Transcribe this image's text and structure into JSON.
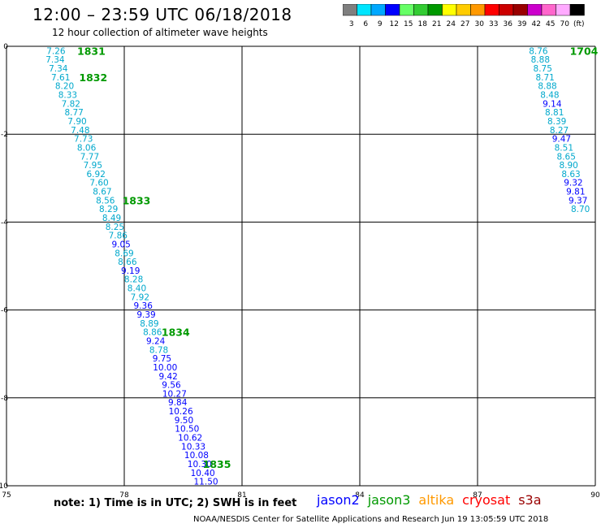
{
  "header": {
    "title": "12:00 – 23:59 UTC 06/18/2018",
    "subtitle": "12 hour collection of altimeter wave heights"
  },
  "colorbar": {
    "labels": [
      "3",
      "6",
      "9",
      "12",
      "15",
      "18",
      "21",
      "24",
      "27",
      "30",
      "33",
      "36",
      "39",
      "42",
      "45",
      "70",
      "(ft)"
    ],
    "colors": [
      "#7f7f7f",
      "#00e5ff",
      "#00a8ff",
      "#0000ff",
      "#66ff66",
      "#33cc33",
      "#009900",
      "#ffff00",
      "#ffcc00",
      "#ff9900",
      "#ff0000",
      "#cc0000",
      "#990000",
      "#cc00cc",
      "#ff66cc",
      "#ffaaff",
      "#000000"
    ]
  },
  "footer": {
    "note": "note:  1) Time is in UTC;  2) SWH is in feet",
    "credit": "NOAA/NESDIS Center for Satellite Applications and Research     Jun 19 13:05:59 UTC 2018"
  },
  "legend": [
    {
      "name": "jason2",
      "color": "#0000ff"
    },
    {
      "name": "jason3",
      "color": "#009900"
    },
    {
      "name": "altika",
      "color": "#ff9900"
    },
    {
      "name": "cryosat",
      "color": "#ff0000"
    },
    {
      "name": "s3a",
      "color": "#990000"
    }
  ],
  "chart_data": {
    "type": "scatter",
    "xlim": [
      75,
      90
    ],
    "ylim": [
      -10,
      0
    ],
    "x_ticks": [
      "75",
      "78",
      "81",
      "84",
      "87",
      "90"
    ],
    "y_ticks": [
      "0",
      "-2",
      "-4",
      "-6",
      "-8",
      "-10"
    ],
    "grid": true,
    "color_light": "#00a8cc",
    "color_dark": "#0000ff",
    "time_color": "#009900",
    "series": [
      {
        "points": [
          {
            "x": 76.26,
            "y": -0.1,
            "v": "7.26"
          },
          {
            "x": 76.24,
            "y": -0.3,
            "v": "7.34"
          },
          {
            "x": 76.32,
            "y": -0.5,
            "v": "7.34"
          },
          {
            "x": 76.38,
            "y": -0.7,
            "v": "7.61"
          },
          {
            "x": 76.48,
            "y": -0.9,
            "v": "8.20"
          },
          {
            "x": 76.56,
            "y": -1.1,
            "v": "8.33"
          },
          {
            "x": 76.64,
            "y": -1.3,
            "v": "7.82"
          },
          {
            "x": 76.72,
            "y": -1.5,
            "v": "8.77"
          },
          {
            "x": 76.8,
            "y": -1.7,
            "v": "7.90"
          },
          {
            "x": 76.88,
            "y": -1.9,
            "v": "7.48"
          },
          {
            "x": 76.96,
            "y": -2.1,
            "v": "7.73"
          },
          {
            "x": 77.04,
            "y": -2.3,
            "v": "8.06"
          },
          {
            "x": 77.12,
            "y": -2.5,
            "v": "7.77"
          },
          {
            "x": 77.2,
            "y": -2.7,
            "v": "7.95"
          },
          {
            "x": 77.28,
            "y": -2.9,
            "v": "6.92"
          },
          {
            "x": 77.36,
            "y": -3.1,
            "v": "7.60"
          },
          {
            "x": 77.44,
            "y": -3.3,
            "v": "8.67"
          },
          {
            "x": 77.52,
            "y": -3.5,
            "v": "8.56"
          },
          {
            "x": 77.6,
            "y": -3.7,
            "v": "8.29"
          },
          {
            "x": 77.68,
            "y": -3.9,
            "v": "8.49"
          },
          {
            "x": 77.76,
            "y": -4.1,
            "v": "8.25"
          },
          {
            "x": 77.84,
            "y": -4.3,
            "v": "7.86"
          },
          {
            "x": 77.92,
            "y": -4.5,
            "v": "9.05"
          },
          {
            "x": 78.0,
            "y": -4.7,
            "v": "8.69"
          },
          {
            "x": 78.08,
            "y": -4.9,
            "v": "8.66"
          },
          {
            "x": 78.16,
            "y": -5.1,
            "v": "9.19"
          },
          {
            "x": 78.24,
            "y": -5.3,
            "v": "8.28"
          },
          {
            "x": 78.32,
            "y": -5.5,
            "v": "8.40"
          },
          {
            "x": 78.4,
            "y": -5.7,
            "v": "7.92"
          },
          {
            "x": 78.48,
            "y": -5.9,
            "v": "9.36"
          },
          {
            "x": 78.56,
            "y": -6.1,
            "v": "9.39"
          },
          {
            "x": 78.64,
            "y": -6.3,
            "v": "8.89"
          },
          {
            "x": 78.72,
            "y": -6.5,
            "v": "8.86"
          },
          {
            "x": 78.8,
            "y": -6.7,
            "v": "9.24"
          },
          {
            "x": 78.88,
            "y": -6.9,
            "v": "8.78"
          },
          {
            "x": 78.96,
            "y": -7.1,
            "v": "9.75"
          },
          {
            "x": 79.04,
            "y": -7.3,
            "v": "10.00"
          },
          {
            "x": 79.12,
            "y": -7.5,
            "v": "9.42"
          },
          {
            "x": 79.2,
            "y": -7.7,
            "v": "9.56"
          },
          {
            "x": 79.28,
            "y": -7.9,
            "v": "10.27"
          },
          {
            "x": 79.36,
            "y": -8.1,
            "v": "9.84"
          },
          {
            "x": 79.44,
            "y": -8.3,
            "v": "10.26"
          },
          {
            "x": 79.52,
            "y": -8.5,
            "v": "9.50"
          },
          {
            "x": 79.6,
            "y": -8.7,
            "v": "10.50"
          },
          {
            "x": 79.68,
            "y": -8.9,
            "v": "10.62"
          },
          {
            "x": 79.76,
            "y": -9.1,
            "v": "10.33"
          },
          {
            "x": 79.84,
            "y": -9.3,
            "v": "10.08"
          },
          {
            "x": 79.92,
            "y": -9.5,
            "v": "10.30"
          },
          {
            "x": 80.0,
            "y": -9.7,
            "v": "10.40"
          },
          {
            "x": 80.08,
            "y": -9.9,
            "v": "11.50"
          }
        ],
        "times": [
          {
            "x": 76.8,
            "y": -0.1,
            "t": "1831"
          },
          {
            "x": 76.85,
            "y": -0.7,
            "t": "1832"
          },
          {
            "x": 77.95,
            "y": -3.5,
            "t": "1833"
          },
          {
            "x": 78.95,
            "y": -6.5,
            "t": "1834"
          },
          {
            "x": 80.0,
            "y": -9.5,
            "t": "1835"
          }
        ]
      },
      {
        "points": [
          {
            "x": 88.55,
            "y": -0.1,
            "v": "8.76"
          },
          {
            "x": 88.6,
            "y": -0.3,
            "v": "8.88"
          },
          {
            "x": 88.66,
            "y": -0.5,
            "v": "8.75"
          },
          {
            "x": 88.72,
            "y": -0.7,
            "v": "8.71"
          },
          {
            "x": 88.78,
            "y": -0.9,
            "v": "8.88"
          },
          {
            "x": 88.84,
            "y": -1.1,
            "v": "8.48"
          },
          {
            "x": 88.9,
            "y": -1.3,
            "v": "9.14"
          },
          {
            "x": 88.96,
            "y": -1.5,
            "v": "8.81"
          },
          {
            "x": 89.02,
            "y": -1.7,
            "v": "8.39"
          },
          {
            "x": 89.08,
            "y": -1.9,
            "v": "8.27"
          },
          {
            "x": 89.14,
            "y": -2.1,
            "v": "9.47"
          },
          {
            "x": 89.2,
            "y": -2.3,
            "v": "8.51"
          },
          {
            "x": 89.26,
            "y": -2.5,
            "v": "8.65"
          },
          {
            "x": 89.32,
            "y": -2.7,
            "v": "8.90"
          },
          {
            "x": 89.38,
            "y": -2.9,
            "v": "8.63"
          },
          {
            "x": 89.44,
            "y": -3.1,
            "v": "9.32"
          },
          {
            "x": 89.5,
            "y": -3.3,
            "v": "9.81"
          },
          {
            "x": 89.56,
            "y": -3.5,
            "v": "9.37"
          },
          {
            "x": 89.62,
            "y": -3.7,
            "v": "8.70"
          }
        ],
        "times": [
          {
            "x": 89.35,
            "y": -0.1,
            "t": "1704"
          }
        ]
      }
    ]
  }
}
